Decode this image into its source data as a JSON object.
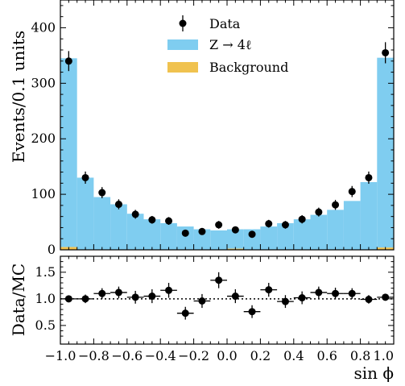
{
  "chart_data": [
    {
      "type": "histogram",
      "panel": "main",
      "ylabel": "Events/0.1 units",
      "xlim": [
        -1.0,
        1.0
      ],
      "ylim": [
        0,
        450
      ],
      "y_ticks": [
        "0",
        "100",
        "200",
        "300",
        "400"
      ],
      "bin_edges": [
        -1.0,
        -0.9,
        -0.8,
        -0.7,
        -0.6,
        -0.5,
        -0.4,
        -0.3,
        -0.2,
        -0.1,
        0.0,
        0.1,
        0.2,
        0.3,
        0.4,
        0.5,
        0.6,
        0.7,
        0.8,
        0.9,
        1.0
      ],
      "series": [
        {
          "name": "Z → 4ℓ",
          "kind": "stacked-bar",
          "color": "#7fcdf0",
          "values": [
            340,
            130,
            95,
            82,
            65,
            55,
            48,
            42,
            37,
            35,
            35,
            37,
            42,
            48,
            55,
            63,
            72,
            88,
            122,
            342
          ]
        },
        {
          "name": "Background",
          "kind": "stacked-bar",
          "color": "#f0c24f",
          "values": [
            5,
            0,
            0,
            0,
            0,
            0,
            0,
            0,
            0,
            0,
            2,
            0,
            0,
            0,
            0,
            0,
            0,
            0,
            0,
            4
          ]
        },
        {
          "name": "Data",
          "kind": "points-with-errors",
          "color": "#000000",
          "x": [
            -0.95,
            -0.85,
            -0.75,
            -0.65,
            -0.55,
            -0.45,
            -0.35,
            -0.25,
            -0.15,
            -0.05,
            0.05,
            0.15,
            0.25,
            0.35,
            0.45,
            0.55,
            0.65,
            0.75,
            0.85,
            0.95
          ],
          "values": [
            340,
            130,
            103,
            82,
            64,
            54,
            52,
            30,
            33,
            45,
            36,
            28,
            47,
            45,
            55,
            68,
            81,
            105,
            130,
            355
          ],
          "errors": [
            18,
            11,
            10,
            9,
            8,
            7,
            7,
            5.5,
            6,
            7,
            6,
            5.5,
            7,
            7,
            7.5,
            8,
            9,
            10,
            11,
            19
          ]
        }
      ],
      "legend": [
        "Data",
        "Z → 4ℓ",
        "Background"
      ],
      "legend_position": "top-center"
    },
    {
      "type": "scatter",
      "panel": "ratio",
      "ylabel": "Data/MC",
      "xlabel": "sin ϕ",
      "xlim": [
        -1.0,
        1.0
      ],
      "ylim": [
        0.15,
        1.8
      ],
      "y_ticks": [
        "0.5",
        "1.0",
        "1.5"
      ],
      "x_ticks": [
        "−1.0",
        "−0.8",
        "−0.6",
        "−0.4",
        "−0.2",
        "0.0",
        "0.2",
        "0.4",
        "0.6",
        "0.8",
        "1.0"
      ],
      "reference_line": 1.0,
      "x": [
        -0.95,
        -0.85,
        -0.75,
        -0.65,
        -0.55,
        -0.45,
        -0.35,
        -0.25,
        -0.15,
        -0.05,
        0.05,
        0.15,
        0.25,
        0.35,
        0.45,
        0.55,
        0.65,
        0.75,
        0.85,
        0.95
      ],
      "values": [
        1.0,
        1.0,
        1.1,
        1.12,
        1.03,
        1.05,
        1.16,
        0.73,
        0.96,
        1.35,
        1.05,
        0.76,
        1.17,
        0.95,
        1.02,
        1.12,
        1.1,
        1.1,
        0.99,
        1.03
      ],
      "errors": [
        0.05,
        0.08,
        0.1,
        0.11,
        0.12,
        0.13,
        0.14,
        0.12,
        0.13,
        0.15,
        0.13,
        0.12,
        0.13,
        0.12,
        0.12,
        0.11,
        0.11,
        0.1,
        0.08,
        0.05
      ]
    }
  ]
}
